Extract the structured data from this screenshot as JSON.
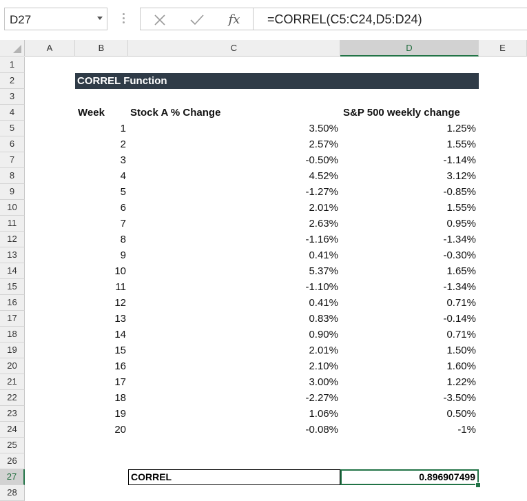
{
  "name_box": "D27",
  "formula": "=CORREL(C5:C24,D5:D24)",
  "icons": {
    "cancel": "x-icon",
    "enter": "check-icon",
    "function": "fx-icon"
  },
  "fx_label": "fx",
  "columns": [
    "A",
    "B",
    "C",
    "D",
    "E"
  ],
  "rows": [
    "1",
    "2",
    "3",
    "4",
    "5",
    "6",
    "7",
    "8",
    "9",
    "10",
    "11",
    "12",
    "13",
    "14",
    "15",
    "16",
    "17",
    "18",
    "19",
    "20",
    "21",
    "22",
    "23",
    "24",
    "25",
    "26",
    "27",
    "28"
  ],
  "title": "CORREL Function",
  "headers": {
    "week": "Week",
    "stock": "Stock A % Change",
    "sp": "S&P 500 weekly change"
  },
  "data": [
    {
      "week": "1",
      "stock": "3.50%",
      "sp": "1.25%"
    },
    {
      "week": "2",
      "stock": "2.57%",
      "sp": "1.55%"
    },
    {
      "week": "3",
      "stock": "-0.50%",
      "sp": "-1.14%"
    },
    {
      "week": "4",
      "stock": "4.52%",
      "sp": "3.12%"
    },
    {
      "week": "5",
      "stock": "-1.27%",
      "sp": "-0.85%"
    },
    {
      "week": "6",
      "stock": "2.01%",
      "sp": "1.55%"
    },
    {
      "week": "7",
      "stock": "2.63%",
      "sp": "0.95%"
    },
    {
      "week": "8",
      "stock": "-1.16%",
      "sp": "-1.34%"
    },
    {
      "week": "9",
      "stock": "0.41%",
      "sp": "-0.30%"
    },
    {
      "week": "10",
      "stock": "5.37%",
      "sp": "1.65%"
    },
    {
      "week": "11",
      "stock": "-1.10%",
      "sp": "-1.34%"
    },
    {
      "week": "12",
      "stock": "0.41%",
      "sp": "0.71%"
    },
    {
      "week": "13",
      "stock": "0.83%",
      "sp": "-0.14%"
    },
    {
      "week": "14",
      "stock": "0.90%",
      "sp": "0.71%"
    },
    {
      "week": "15",
      "stock": "2.01%",
      "sp": "1.50%"
    },
    {
      "week": "16",
      "stock": "2.10%",
      "sp": "1.60%"
    },
    {
      "week": "17",
      "stock": "3.00%",
      "sp": "1.22%"
    },
    {
      "week": "18",
      "stock": "-2.27%",
      "sp": "-3.50%"
    },
    {
      "week": "19",
      "stock": "1.06%",
      "sp": "0.50%"
    },
    {
      "week": "20",
      "stock": "-0.08%",
      "sp": "-1%"
    }
  ],
  "correl_label": "CORREL",
  "correl_value": "0.896907499",
  "colors": {
    "title_bg": "#2f3b47",
    "selection": "#217346",
    "header_bg": "#efefef"
  }
}
